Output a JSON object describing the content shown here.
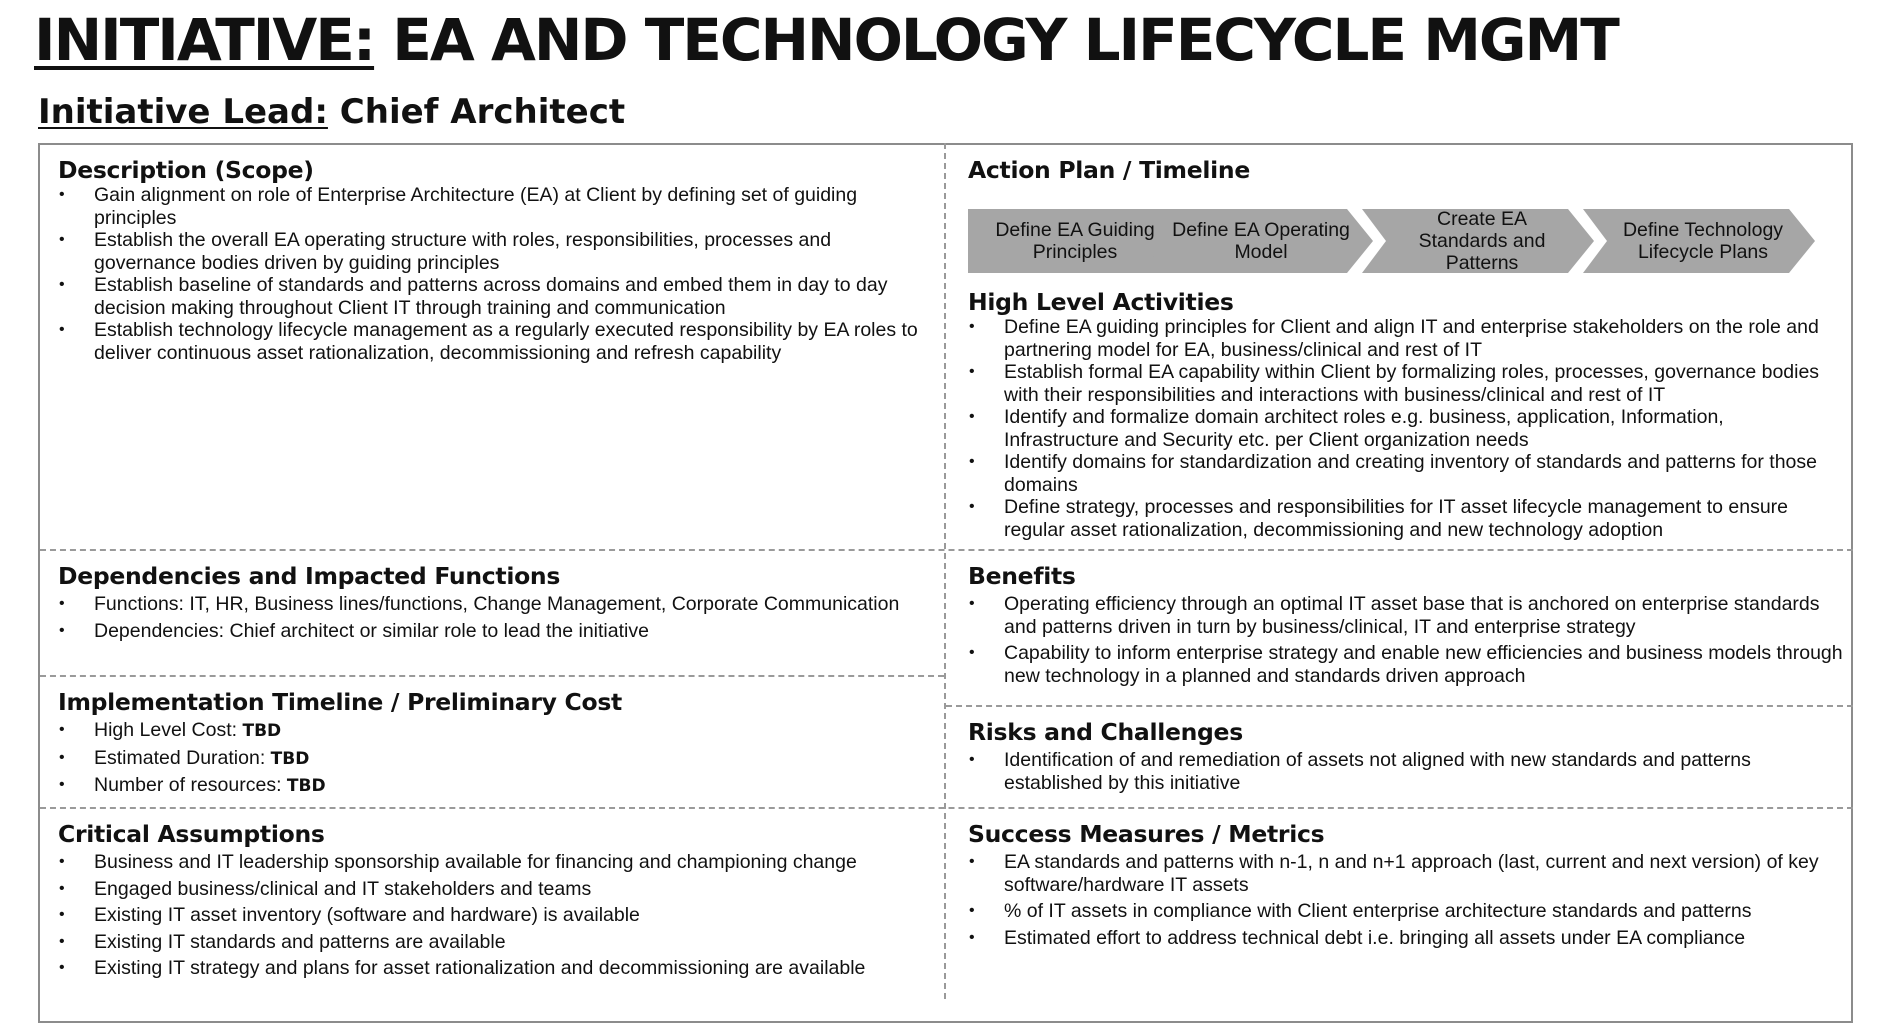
{
  "title": {
    "prefix": "INITIATIVE:",
    "text": "EA AND TECHNOLOGY LIFECYCLE  MGMT"
  },
  "lead": {
    "label": "Initiative Lead:",
    "value": "Chief Architect"
  },
  "description": {
    "heading": "Description (Scope)",
    "items": [
      "Gain alignment on role of Enterprise Architecture (EA) at Client by defining set of guiding principles",
      "Establish the overall EA operating structure with roles, responsibilities, processes and governance bodies driven by guiding principles",
      "Establish baseline of standards and patterns across domains and embed them in day to day decision making throughout Client IT through training and communication",
      "Establish technology lifecycle management as a regularly executed responsibility by EA roles to deliver continuous asset rationalization, decommissioning and refresh capability"
    ]
  },
  "action_plan": {
    "heading": "Action Plan / Timeline",
    "steps": [
      "Define EA Guiding Principles",
      "Define EA Operating Model",
      "Create EA Standards and Patterns",
      "Define Technology Lifecycle Plans"
    ]
  },
  "activities": {
    "heading": "High Level Activities",
    "items": [
      "Define EA guiding principles for Client and align IT and enterprise stakeholders on the role and partnering model for EA, business/clinical and rest of IT",
      "Establish formal EA capability within Client by formalizing roles, processes, governance bodies with their responsibilities and interactions with business/clinical and rest of IT",
      "Identify and formalize domain architect roles e.g. business, application, Information, Infrastructure and Security etc. per Client organization needs",
      "Identify domains for standardization and creating inventory of standards and patterns for those domains",
      "Define strategy, processes and responsibilities for IT asset lifecycle management to ensure regular asset rationalization, decommissioning and new technology adoption"
    ]
  },
  "dependencies": {
    "heading": "Dependencies and Impacted Functions",
    "items": [
      "Functions: IT, HR, Business lines/functions, Change Management, Corporate Communication",
      "Dependencies: Chief architect or similar role to lead the initiative"
    ]
  },
  "benefits": {
    "heading": "Benefits",
    "items": [
      "Operating efficiency through an optimal IT asset base that is anchored on enterprise standards and patterns driven in turn by business/clinical, IT and enterprise strategy",
      "Capability to inform enterprise strategy and enable new efficiencies and business models through new technology in a planned and standards driven approach"
    ]
  },
  "implementation": {
    "heading": "Implementation Timeline / Preliminary Cost",
    "items": [
      {
        "label": "High Level Cost: ",
        "value": "TBD"
      },
      {
        "label": "Estimated Duration: ",
        "value": "TBD"
      },
      {
        "label": "Number of resources: ",
        "value": "TBD"
      }
    ]
  },
  "risks": {
    "heading": "Risks and Challenges",
    "items": [
      "Identification of and remediation of assets not aligned with new standards and patterns established by this initiative"
    ]
  },
  "assumptions": {
    "heading": "Critical Assumptions",
    "items": [
      "Business and IT leadership sponsorship available for financing and championing change",
      "Engaged business/clinical and IT stakeholders and teams",
      "Existing IT asset inventory (software and hardware) is available",
      "Existing IT standards and patterns are available",
      "Existing IT strategy and plans for asset rationalization and decommissioning are available"
    ]
  },
  "success": {
    "heading": "Success Measures / Metrics",
    "items": [
      "EA standards and patterns with n-1, n and n+1 approach (last, current and next version) of key software/hardware IT assets",
      "% of IT assets in compliance with Client enterprise architecture standards and patterns",
      "Estimated effort to address technical debt i.e. bringing all assets under EA compliance"
    ]
  }
}
